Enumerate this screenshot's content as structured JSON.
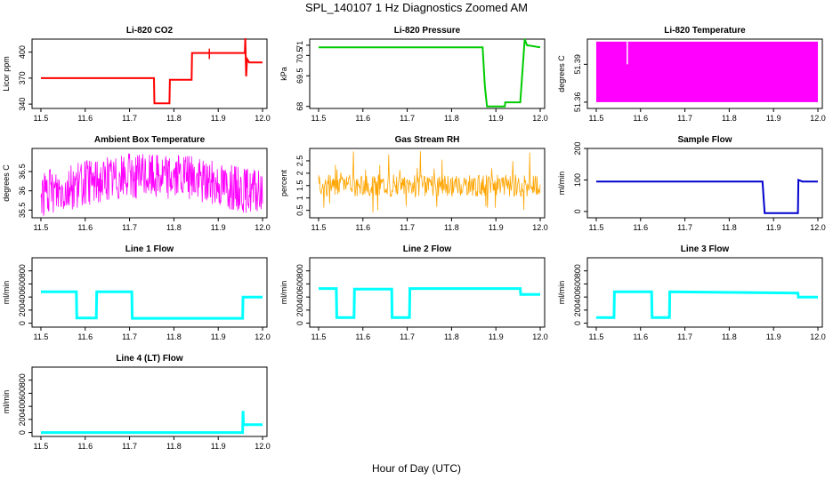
{
  "title": "SPL_140107  1 Hz Diagnostics Zoomed AM",
  "xlabel": "Hour of Day (UTC)",
  "chart_data": [
    {
      "type": "line",
      "title": "Li-820 CO2",
      "ylabel": "Licor ppm",
      "color": "#ff0000",
      "xlim": [
        11.48,
        12.01
      ],
      "ylim": [
        335,
        415
      ],
      "yticks": [
        340,
        370,
        400
      ],
      "xticks": [
        11.5,
        11.6,
        11.7,
        11.8,
        11.9,
        12.0
      ],
      "series": [
        {
          "x": [
            11.5,
            11.755,
            11.756,
            11.79,
            11.791,
            11.84,
            11.841,
            11.96,
            11.961,
            11.963,
            11.965,
            11.97,
            12.0
          ],
          "y": [
            370,
            370,
            341,
            341,
            368,
            368,
            399,
            399,
            416,
            372,
            392,
            388,
            388
          ]
        }
      ]
    },
    {
      "type": "line",
      "title": "Li-820 Pressure",
      "ylabel": "kPa",
      "color": "#00cc00",
      "xlim": [
        11.48,
        12.01
      ],
      "ylim": [
        67.9,
        71.3
      ],
      "yticks": [
        68.0,
        69.5,
        70.5,
        71.0
      ],
      "xticks": [
        11.5,
        11.6,
        11.7,
        11.8,
        11.9,
        12.0
      ],
      "series": [
        {
          "x": [
            11.5,
            11.87,
            11.875,
            11.88,
            11.92,
            11.921,
            11.955,
            11.965,
            11.97,
            12.0
          ],
          "y": [
            70.9,
            70.9,
            69.0,
            68.0,
            68.0,
            68.2,
            68.2,
            71.3,
            71.0,
            70.9
          ]
        }
      ]
    },
    {
      "type": "area",
      "title": "Li-820 Temperature",
      "ylabel": "degrees C",
      "color": "#ff00ff",
      "xlim": [
        11.48,
        12.01
      ],
      "ylim": [
        51.355,
        51.41
      ],
      "yticks": [
        51.36,
        51.39
      ],
      "xticks": [
        11.5,
        11.6,
        11.7,
        11.8,
        11.9,
        12.0
      ],
      "series": [
        {
          "x": [
            11.5,
            12.0
          ],
          "lower": 51.36,
          "upper": 51.408
        }
      ]
    },
    {
      "type": "line",
      "title": "Ambient Box Temperature",
      "ylabel": "degrees C",
      "color": "#ff00ff",
      "xlim": [
        11.48,
        12.01
      ],
      "ylim": [
        35.3,
        37.1
      ],
      "yticks": [
        35.5,
        36.0,
        36.5
      ],
      "xticks": [
        11.5,
        11.6,
        11.7,
        11.8,
        11.9,
        12.0
      ],
      "series": [
        {
          "x": [
            11.5,
            11.6,
            11.7,
            11.8,
            11.9,
            12.0
          ],
          "y": [
            35.9,
            36.2,
            36.4,
            36.4,
            36.2,
            36.0
          ]
        }
      ]
    },
    {
      "type": "scatter",
      "title": "Gas Stream RH",
      "ylabel": "percent",
      "color": "#ffa500",
      "xlim": [
        11.48,
        12.01
      ],
      "ylim": [
        0.2,
        3.0
      ],
      "yticks": [
        0.5,
        1.0,
        1.5,
        2.0,
        2.5
      ],
      "xticks": [
        11.5,
        11.6,
        11.7,
        11.8,
        11.9,
        12.0
      ],
      "series": [
        {
          "x": [
            11.5,
            12.0
          ],
          "y": [
            1.5,
            1.5
          ]
        }
      ]
    },
    {
      "type": "line",
      "title": "Sample Flow",
      "ylabel": "ml/min",
      "color": "#0000cc",
      "xlim": [
        11.48,
        12.01
      ],
      "ylim": [
        -20,
        200
      ],
      "yticks": [
        0,
        100,
        200
      ],
      "xticks": [
        11.5,
        11.6,
        11.7,
        11.8,
        11.9,
        12.0
      ],
      "series": [
        {
          "x": [
            11.5,
            11.875,
            11.88,
            11.955,
            11.956,
            11.965,
            12.0
          ],
          "y": [
            95,
            95,
            -5,
            -5,
            100,
            95,
            95
          ]
        }
      ]
    },
    {
      "type": "line",
      "title": "Line 1 Flow",
      "ylabel": "ml/min",
      "color": "#00ffff",
      "xlim": [
        11.48,
        12.01
      ],
      "ylim": [
        -60,
        1000
      ],
      "yticks": [
        0,
        200,
        400,
        600,
        800
      ],
      "xticks": [
        11.5,
        11.6,
        11.7,
        11.8,
        11.9,
        12.0
      ],
      "series": [
        {
          "x": [
            11.5,
            11.58,
            11.581,
            11.625,
            11.626,
            11.705,
            11.706,
            11.955,
            11.956,
            12.0
          ],
          "y": [
            480,
            480,
            80,
            80,
            480,
            480,
            75,
            75,
            400,
            400
          ]
        }
      ]
    },
    {
      "type": "line",
      "title": "Line 2 Flow",
      "ylabel": "ml/min",
      "color": "#00ffff",
      "xlim": [
        11.48,
        12.01
      ],
      "ylim": [
        -60,
        1000
      ],
      "yticks": [
        0,
        200,
        400,
        600,
        800
      ],
      "xticks": [
        11.5,
        11.6,
        11.7,
        11.8,
        11.9,
        12.0
      ],
      "series": [
        {
          "x": [
            11.5,
            11.54,
            11.541,
            11.58,
            11.581,
            11.665,
            11.666,
            11.705,
            11.706,
            11.955,
            11.956,
            12.0
          ],
          "y": [
            530,
            530,
            85,
            85,
            520,
            520,
            85,
            85,
            530,
            530,
            440,
            440
          ]
        }
      ]
    },
    {
      "type": "line",
      "title": "Line 3 Flow",
      "ylabel": "ml/min",
      "color": "#00ffff",
      "xlim": [
        11.48,
        12.01
      ],
      "ylim": [
        -60,
        1000
      ],
      "yticks": [
        0,
        200,
        400,
        600,
        800
      ],
      "xticks": [
        11.5,
        11.6,
        11.7,
        11.8,
        11.9,
        12.0
      ],
      "series": [
        {
          "x": [
            11.5,
            11.54,
            11.541,
            11.625,
            11.626,
            11.665,
            11.666,
            11.955,
            11.956,
            12.0
          ],
          "y": [
            85,
            85,
            480,
            480,
            85,
            85,
            480,
            460,
            400,
            400
          ]
        }
      ]
    },
    {
      "type": "line",
      "title": "Line 4 (LT) Flow",
      "ylabel": "ml/min",
      "color": "#00ffff",
      "xlim": [
        11.48,
        12.01
      ],
      "ylim": [
        -60,
        1000
      ],
      "yticks": [
        0,
        200,
        400,
        600,
        800
      ],
      "xticks": [
        11.5,
        11.6,
        11.7,
        11.8,
        11.9,
        12.0
      ],
      "series": [
        {
          "x": [
            11.5,
            11.955,
            11.956,
            11.957,
            11.96,
            12.0
          ],
          "y": [
            0,
            0,
            330,
            120,
            120,
            120
          ]
        }
      ]
    }
  ]
}
